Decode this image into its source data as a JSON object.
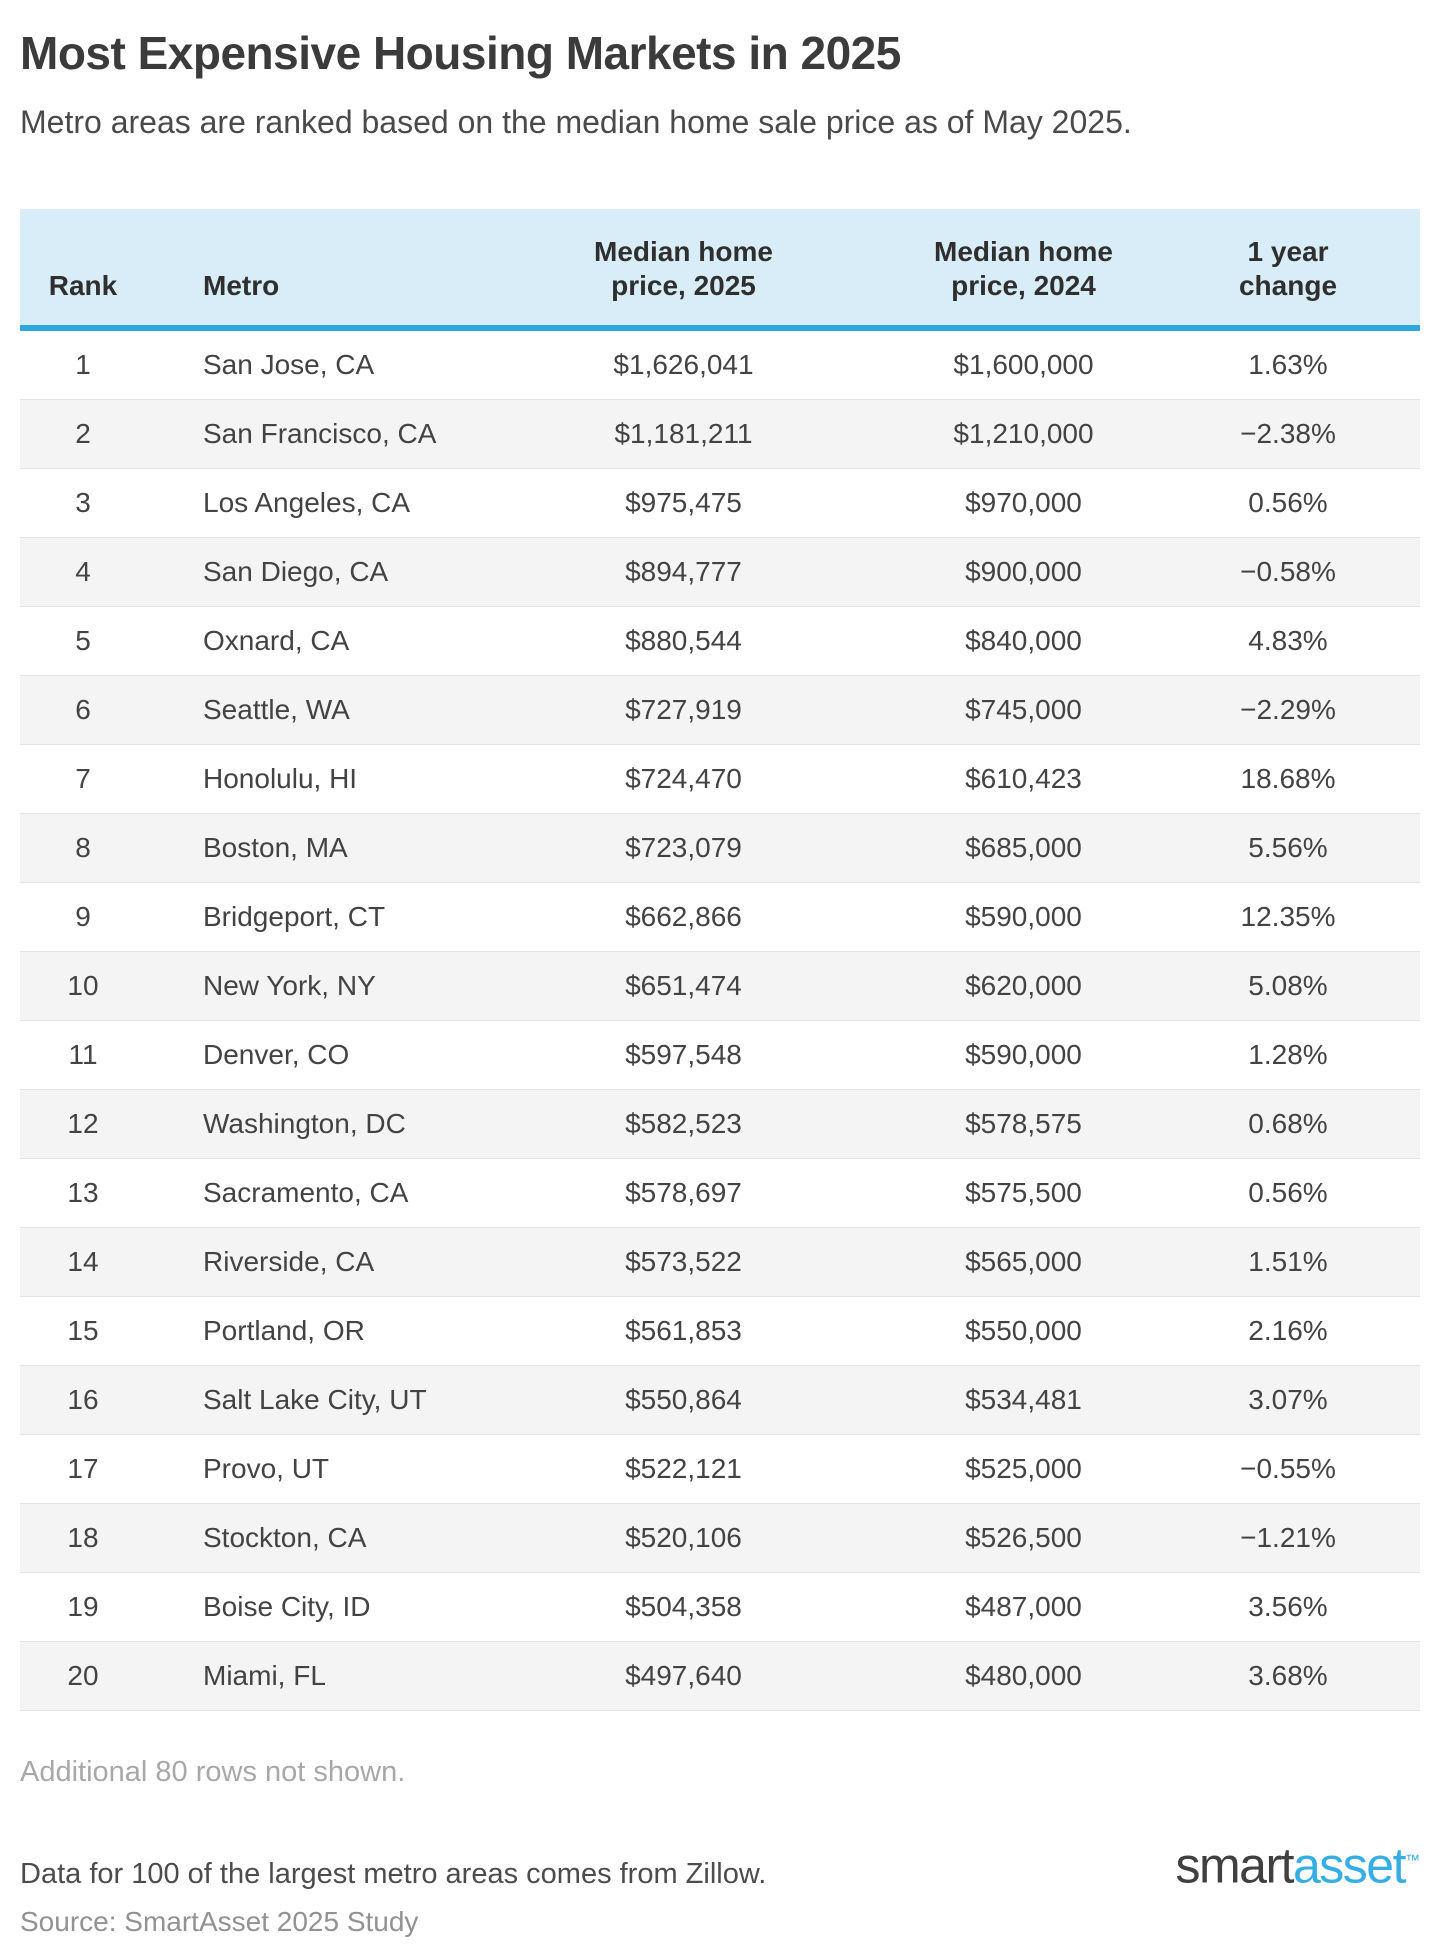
{
  "header": {
    "title": "Most Expensive Housing Markets in 2025",
    "subtitle": "Metro areas are ranked based on the median home sale price as of May 2025."
  },
  "table_header": [
    {
      "line1": "",
      "line2": "Rank"
    },
    {
      "line1": "",
      "line2": "Metro"
    },
    {
      "line1": "Median home",
      "line2": "price, 2025"
    },
    {
      "line1": "Median home",
      "line2": "price, 2024"
    },
    {
      "line1": "1 year",
      "line2": "change"
    }
  ],
  "chart_data": {
    "type": "table",
    "title": "Most Expensive Housing Markets in 2025",
    "columns": [
      "Rank",
      "Metro",
      "Median home price, 2025",
      "Median home price, 2024",
      "1 year change"
    ],
    "rows": [
      [
        1,
        "San Jose, CA",
        "$1,626,041",
        "$1,600,000",
        "1.63%"
      ],
      [
        2,
        "San Francisco, CA",
        "$1,181,211",
        "$1,210,000",
        "−2.38%"
      ],
      [
        3,
        "Los Angeles, CA",
        "$975,475",
        "$970,000",
        "0.56%"
      ],
      [
        4,
        "San Diego, CA",
        "$894,777",
        "$900,000",
        "−0.58%"
      ],
      [
        5,
        "Oxnard, CA",
        "$880,544",
        "$840,000",
        "4.83%"
      ],
      [
        6,
        "Seattle, WA",
        "$727,919",
        "$745,000",
        "−2.29%"
      ],
      [
        7,
        "Honolulu, HI",
        "$724,470",
        "$610,423",
        "18.68%"
      ],
      [
        8,
        "Boston, MA",
        "$723,079",
        "$685,000",
        "5.56%"
      ],
      [
        9,
        "Bridgeport, CT",
        "$662,866",
        "$590,000",
        "12.35%"
      ],
      [
        10,
        "New York, NY",
        "$651,474",
        "$620,000",
        "5.08%"
      ],
      [
        11,
        "Denver, CO",
        "$597,548",
        "$590,000",
        "1.28%"
      ],
      [
        12,
        "Washington, DC",
        "$582,523",
        "$578,575",
        "0.68%"
      ],
      [
        13,
        "Sacramento, CA",
        "$578,697",
        "$575,500",
        "0.56%"
      ],
      [
        14,
        "Riverside, CA",
        "$573,522",
        "$565,000",
        "1.51%"
      ],
      [
        15,
        "Portland, OR",
        "$561,853",
        "$550,000",
        "2.16%"
      ],
      [
        16,
        "Salt Lake City, UT",
        "$550,864",
        "$534,481",
        "3.07%"
      ],
      [
        17,
        "Provo, UT",
        "$522,121",
        "$525,000",
        "−0.55%"
      ],
      [
        18,
        "Stockton, CA",
        "$520,106",
        "$526,500",
        "−1.21%"
      ],
      [
        19,
        "Boise City, ID",
        "$504,358",
        "$487,000",
        "3.56%"
      ],
      [
        20,
        "Miami, FL",
        "$497,640",
        "$480,000",
        "3.68%"
      ]
    ]
  },
  "notes": {
    "additional_rows": "Additional 80 rows not shown.",
    "data_note": "Data for 100 of the largest metro areas comes from Zillow.",
    "source": "Source: SmartAsset 2025 Study"
  },
  "logo": {
    "part1": "smart",
    "part2": "asset",
    "tm": "™"
  },
  "colors": {
    "header_bg": "#d9edf9",
    "accent_line": "#2ea7de",
    "alt_row_bg": "#f4f4f4",
    "row_border": "#e3e3e3",
    "title_text": "#3b3b3b",
    "body_text": "#434343",
    "muted_text": "#a8a8a8",
    "source_text": "#929292",
    "logo_dark": "#3f4040",
    "logo_blue": "#35aee4"
  }
}
